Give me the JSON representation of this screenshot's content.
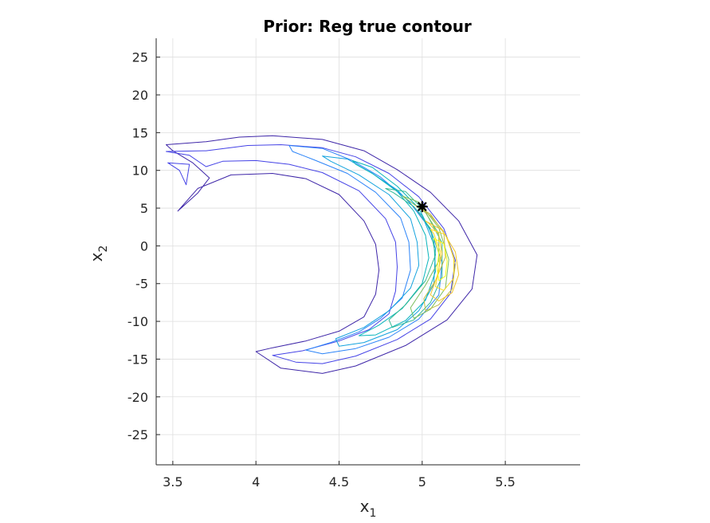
{
  "chart_data": {
    "type": "contour",
    "title": "Prior: Reg true contour",
    "xlabel": {
      "main": "x",
      "sub": "1"
    },
    "ylabel": {
      "main": "x",
      "sub": "2"
    },
    "xlim": [
      3.4,
      5.95
    ],
    "ylim": [
      -29,
      27.5
    ],
    "xticks": [
      3.5,
      4,
      4.5,
      5,
      5.5
    ],
    "xtick_labels": [
      "3.5",
      "4",
      "4.5",
      "5",
      "5.5"
    ],
    "yticks": [
      25,
      20,
      15,
      10,
      5,
      0,
      -5,
      -10,
      -15,
      -20,
      -25
    ],
    "ytick_labels": [
      "25",
      "20",
      "15",
      "10",
      "5",
      "0",
      "-5",
      "-10",
      "-15",
      "-20",
      "-25"
    ],
    "grid": true,
    "colormap": "parula",
    "levels": [
      {
        "color": "#3e26a8",
        "points": [
          [
            3.46,
            13.4
          ],
          [
            3.7,
            13.8
          ],
          [
            3.9,
            14.4
          ],
          [
            4.1,
            14.6
          ],
          [
            4.4,
            14.1
          ],
          [
            4.65,
            12.6
          ],
          [
            4.85,
            10.1
          ],
          [
            5.05,
            7.1
          ],
          [
            5.22,
            3.3
          ],
          [
            5.33,
            -1.2
          ],
          [
            5.3,
            -5.7
          ],
          [
            5.15,
            -9.8
          ],
          [
            4.9,
            -13.2
          ],
          [
            4.6,
            -15.9
          ],
          [
            4.4,
            -16.9
          ],
          [
            4.15,
            -16.2
          ],
          [
            4.0,
            -14.0
          ],
          [
            4.1,
            -13.5
          ],
          [
            4.3,
            -12.6
          ],
          [
            4.5,
            -11.3
          ],
          [
            4.65,
            -9.4
          ],
          [
            4.72,
            -6.4
          ],
          [
            4.74,
            -3.2
          ],
          [
            4.72,
            0.2
          ],
          [
            4.65,
            3.3
          ],
          [
            4.5,
            6.8
          ],
          [
            4.3,
            8.9
          ],
          [
            4.1,
            9.6
          ],
          [
            3.85,
            9.4
          ],
          [
            3.65,
            7.6
          ],
          [
            3.53,
            4.6
          ],
          [
            3.65,
            7.0
          ],
          [
            3.72,
            9.0
          ],
          [
            3.62,
            11.0
          ],
          [
            3.5,
            12.6
          ]
        ]
      },
      {
        "color": "#4543e6",
        "points": [
          [
            3.47,
            11.0
          ],
          [
            3.6,
            10.8
          ],
          [
            3.58,
            8.1
          ],
          [
            3.54,
            10.0
          ]
        ]
      },
      {
        "color": "#4543e6",
        "points": [
          [
            3.46,
            12.5
          ],
          [
            3.7,
            12.6
          ],
          [
            3.95,
            13.3
          ],
          [
            4.15,
            13.4
          ],
          [
            4.4,
            13.0
          ],
          [
            4.6,
            11.8
          ],
          [
            4.8,
            9.6
          ],
          [
            4.98,
            6.5
          ],
          [
            5.13,
            2.3
          ],
          [
            5.2,
            -1.9
          ],
          [
            5.17,
            -6.3
          ],
          [
            5.05,
            -9.7
          ],
          [
            4.85,
            -12.4
          ],
          [
            4.6,
            -14.6
          ],
          [
            4.4,
            -15.6
          ],
          [
            4.24,
            -15.4
          ],
          [
            4.1,
            -14.5
          ],
          [
            4.28,
            -13.9
          ],
          [
            4.5,
            -12.6
          ],
          [
            4.68,
            -11.1
          ],
          [
            4.8,
            -9.0
          ],
          [
            4.84,
            -6.0
          ],
          [
            4.85,
            -2.8
          ],
          [
            4.84,
            0.5
          ],
          [
            4.78,
            3.6
          ],
          [
            4.62,
            7.3
          ],
          [
            4.4,
            9.7
          ],
          [
            4.2,
            10.8
          ],
          [
            4.0,
            11.3
          ],
          [
            3.8,
            11.2
          ],
          [
            3.7,
            10.5
          ],
          [
            3.6,
            12.0
          ]
        ]
      },
      {
        "color": "#2c84f8",
        "points": [
          [
            4.2,
            13.3
          ],
          [
            4.4,
            12.9
          ],
          [
            4.58,
            11.3
          ],
          [
            4.75,
            9.1
          ],
          [
            4.92,
            5.9
          ],
          [
            5.05,
            2.2
          ],
          [
            5.12,
            -2.2
          ],
          [
            5.1,
            -6.5
          ],
          [
            4.98,
            -9.7
          ],
          [
            4.8,
            -12.1
          ],
          [
            4.6,
            -13.6
          ],
          [
            4.4,
            -14.3
          ],
          [
            4.3,
            -13.8
          ],
          [
            4.45,
            -12.8
          ],
          [
            4.62,
            -11.4
          ],
          [
            4.75,
            -9.6
          ],
          [
            4.88,
            -6.9
          ],
          [
            4.93,
            -3.2
          ],
          [
            4.92,
            0.5
          ],
          [
            4.87,
            3.7
          ],
          [
            4.72,
            7.1
          ],
          [
            4.55,
            9.6
          ],
          [
            4.35,
            11.4
          ],
          [
            4.22,
            12.5
          ]
        ]
      },
      {
        "color": "#14a3de",
        "points": [
          [
            4.4,
            11.9
          ],
          [
            4.55,
            11.5
          ],
          [
            4.7,
            9.6
          ],
          [
            4.85,
            7.4
          ],
          [
            5.0,
            4.0
          ],
          [
            5.08,
            -0.3
          ],
          [
            5.07,
            -5.1
          ],
          [
            4.98,
            -8.6
          ],
          [
            4.85,
            -11.1
          ],
          [
            4.65,
            -12.8
          ],
          [
            4.5,
            -13.3
          ],
          [
            4.48,
            -12.3
          ],
          [
            4.65,
            -10.8
          ],
          [
            4.8,
            -8.6
          ],
          [
            4.93,
            -5.6
          ],
          [
            4.98,
            -2.6
          ],
          [
            4.97,
            0.5
          ],
          [
            4.93,
            3.6
          ],
          [
            4.8,
            6.8
          ],
          [
            4.62,
            9.4
          ],
          [
            4.45,
            11.2
          ]
        ]
      },
      {
        "color": "#0ab5bc",
        "points": [
          [
            4.58,
            11.3
          ],
          [
            4.7,
            10.4
          ],
          [
            4.85,
            7.9
          ],
          [
            4.98,
            5.0
          ],
          [
            5.07,
            1.0
          ],
          [
            5.08,
            -3.4
          ],
          [
            5.02,
            -7.2
          ],
          [
            4.9,
            -9.9
          ],
          [
            4.72,
            -11.8
          ],
          [
            4.62,
            -11.9
          ],
          [
            4.74,
            -10.5
          ],
          [
            4.88,
            -8.3
          ],
          [
            5.0,
            -5.0
          ],
          [
            5.04,
            -1.6
          ],
          [
            5.02,
            1.4
          ],
          [
            4.95,
            4.6
          ],
          [
            4.85,
            7.2
          ],
          [
            4.7,
            9.6
          ],
          [
            4.6,
            10.8
          ]
        ]
      },
      {
        "color": "#33b994",
        "points": [
          [
            4.78,
            7.6
          ],
          [
            4.9,
            7.2
          ],
          [
            5.02,
            4.5
          ],
          [
            5.12,
            0.4
          ],
          [
            5.12,
            -4.1
          ],
          [
            5.05,
            -7.5
          ],
          [
            4.95,
            -9.8
          ],
          [
            4.82,
            -10.8
          ],
          [
            4.8,
            -9.8
          ],
          [
            4.9,
            -7.8
          ],
          [
            5.02,
            -4.6
          ],
          [
            5.08,
            -1.2
          ],
          [
            5.05,
            2.3
          ],
          [
            4.95,
            5.2
          ],
          [
            4.83,
            7.0
          ]
        ]
      },
      {
        "color": "#7bbe5e",
        "points": [
          [
            4.88,
            6.6
          ],
          [
            4.98,
            5.8
          ],
          [
            5.1,
            2.4
          ],
          [
            5.16,
            -1.8
          ],
          [
            5.14,
            -5.6
          ],
          [
            5.05,
            -8.4
          ],
          [
            4.95,
            -9.6
          ],
          [
            4.93,
            -8.2
          ],
          [
            5.02,
            -5.2
          ],
          [
            5.1,
            -2.0
          ],
          [
            5.1,
            1.6
          ],
          [
            5.02,
            4.4
          ],
          [
            4.92,
            6.0
          ]
        ]
      },
      {
        "color": "#c1ba44",
        "points": [
          [
            4.96,
            5.4
          ],
          [
            5.05,
            4.2
          ],
          [
            5.15,
            1.1
          ],
          [
            5.2,
            -2.4
          ],
          [
            5.18,
            -5.7
          ],
          [
            5.1,
            -7.8
          ],
          [
            5.02,
            -8.6
          ],
          [
            5.01,
            -7.0
          ],
          [
            5.08,
            -4.6
          ],
          [
            5.14,
            -1.5
          ],
          [
            5.13,
            1.9
          ],
          [
            5.05,
            4.0
          ],
          [
            4.98,
            5.1
          ]
        ]
      },
      {
        "color": "#f3c62b",
        "points": [
          [
            5.02,
            3.3
          ],
          [
            5.12,
            2.1
          ],
          [
            5.2,
            -0.8
          ],
          [
            5.22,
            -3.8
          ],
          [
            5.18,
            -6.2
          ],
          [
            5.1,
            -7.3
          ],
          [
            5.05,
            -6.5
          ],
          [
            5.09,
            -4.0
          ],
          [
            5.12,
            -1.0
          ],
          [
            5.1,
            1.5
          ],
          [
            5.04,
            3.0
          ]
        ]
      },
      {
        "color": "#fada24",
        "points": [
          [
            5.05,
            2.2
          ],
          [
            5.14,
            1.5
          ],
          [
            5.19,
            -1.5
          ],
          [
            5.19,
            -4.3
          ],
          [
            5.13,
            -5.9
          ],
          [
            5.08,
            -5.4
          ],
          [
            5.1,
            -3.2
          ],
          [
            5.11,
            -0.8
          ],
          [
            5.07,
            1.6
          ]
        ]
      },
      {
        "color": "#f9fb15",
        "points": [
          [
            5.07,
            1.0
          ],
          [
            5.13,
            0.3
          ],
          [
            5.15,
            -2.0
          ],
          [
            5.14,
            -4.0
          ],
          [
            5.1,
            -4.6
          ],
          [
            5.09,
            -3.0
          ],
          [
            5.1,
            -1.0
          ],
          [
            5.08,
            0.6
          ]
        ]
      }
    ],
    "marker": {
      "x": 5.0,
      "y": 5.2,
      "symbol": "star",
      "color": "#000000"
    }
  }
}
